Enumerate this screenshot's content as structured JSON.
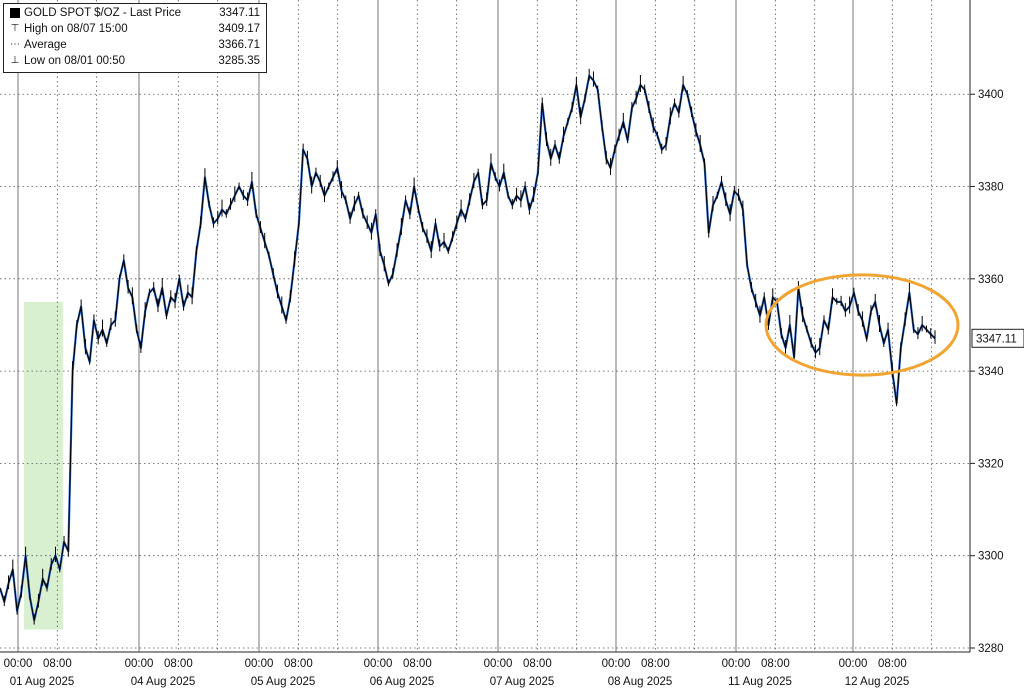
{
  "legend": {
    "title": "GOLD SPOT $/OZ - Last Price",
    "title_value": "3347.11",
    "high_label": "High on 08/07 15:00",
    "high_value": "3409.17",
    "avg_label": "Average",
    "avg_value": "3366.71",
    "low_label": "Low on 08/01 00:50",
    "low_value": "3285.35"
  },
  "last_price_tag": "3347.11",
  "colors": {
    "line": "#000000",
    "line_alt": "#2f6fd6",
    "highlight": "#d8f0cf",
    "ellipse": "#f0a431",
    "grid": "#555555"
  },
  "chart_data": {
    "type": "line",
    "title": "GOLD SPOT $/OZ - Last Price",
    "ylim": [
      3280,
      3415
    ],
    "y_ticks": [
      3280,
      3300,
      3320,
      3340,
      3360,
      3380,
      3400
    ],
    "x_ticks": [
      {
        "time": "00:00",
        "day": 0
      },
      {
        "time": "08:00",
        "day": 0
      },
      {
        "time": "00:00",
        "day": 1
      },
      {
        "time": "08:00",
        "day": 1
      },
      {
        "time": "00:00",
        "day": 2
      },
      {
        "time": "08:00",
        "day": 2
      },
      {
        "time": "00:00",
        "day": 3
      },
      {
        "time": "08:00",
        "day": 3
      },
      {
        "time": "00:00",
        "day": 4
      },
      {
        "time": "08:00",
        "day": 4
      },
      {
        "time": "00:00",
        "day": 5
      },
      {
        "time": "08:00",
        "day": 5
      },
      {
        "time": "00:00",
        "day": 6
      },
      {
        "time": "08:00",
        "day": 6
      },
      {
        "time": "00:00",
        "day": 7
      },
      {
        "time": "08:00",
        "day": 7
      }
    ],
    "date_labels": [
      "01 Aug 2025",
      "04 Aug 2025",
      "05 Aug 2025",
      "06 Aug 2025",
      "07 Aug 2025",
      "08 Aug 2025",
      "11 Aug 2025",
      "12 Aug 2025"
    ],
    "last_price": 3347.11,
    "high": 3409.17,
    "average": 3366.71,
    "low": 3285.35,
    "grid": true,
    "legend_position": "top-left",
    "series": [
      {
        "values": [
          3293,
          3290,
          3294,
          3297,
          3288,
          3292,
          3300,
          3291,
          3286,
          3290,
          3295,
          3293,
          3298,
          3300,
          3297,
          3303,
          3301,
          3340,
          3350,
          3354,
          3345,
          3342,
          3351,
          3347,
          3349,
          3346,
          3350,
          3351,
          3360,
          3364,
          3358,
          3356,
          3349,
          3345,
          3353,
          3357,
          3358,
          3354,
          3358,
          3352,
          3356,
          3355,
          3360,
          3354,
          3357,
          3356,
          3366,
          3372,
          3382,
          3376,
          3372,
          3373,
          3375,
          3374,
          3376,
          3378,
          3380,
          3378,
          3377,
          3381,
          3374,
          3371,
          3368,
          3365,
          3361,
          3357,
          3354,
          3351,
          3356,
          3364,
          3372,
          3388,
          3386,
          3380,
          3383,
          3381,
          3378,
          3380,
          3382,
          3384,
          3379,
          3377,
          3373,
          3376,
          3378,
          3374,
          3372,
          3370,
          3374,
          3366,
          3363,
          3359,
          3361,
          3366,
          3371,
          3377,
          3374,
          3380,
          3375,
          3371,
          3369,
          3366,
          3372,
          3367,
          3368,
          3366,
          3369,
          3372,
          3375,
          3373,
          3377,
          3381,
          3383,
          3376,
          3377,
          3385,
          3382,
          3380,
          3383,
          3378,
          3376,
          3378,
          3377,
          3380,
          3375,
          3378,
          3383,
          3398,
          3390,
          3386,
          3389,
          3386,
          3391,
          3394,
          3397,
          3402,
          3395,
          3399,
          3404,
          3403,
          3401,
          3393,
          3386,
          3384,
          3388,
          3391,
          3394,
          3390,
          3397,
          3399,
          3402,
          3401,
          3397,
          3393,
          3391,
          3388,
          3389,
          3395,
          3398,
          3396,
          3402,
          3400,
          3396,
          3392,
          3389,
          3385,
          3370,
          3376,
          3378,
          3381,
          3377,
          3374,
          3379,
          3378,
          3375,
          3363,
          3358,
          3355,
          3352,
          3356,
          3350,
          3356,
          3355,
          3348,
          3345,
          3350,
          3343,
          3358,
          3352,
          3349,
          3346,
          3344,
          3345,
          3351,
          3349,
          3356,
          3355,
          3355,
          3353,
          3354,
          3357,
          3353,
          3351,
          3347,
          3353,
          3355,
          3350,
          3346,
          3349,
          3340,
          3333,
          3345,
          3351,
          3357,
          3349,
          3348,
          3350,
          3349,
          3348,
          3347.11
        ]
      }
    ]
  }
}
